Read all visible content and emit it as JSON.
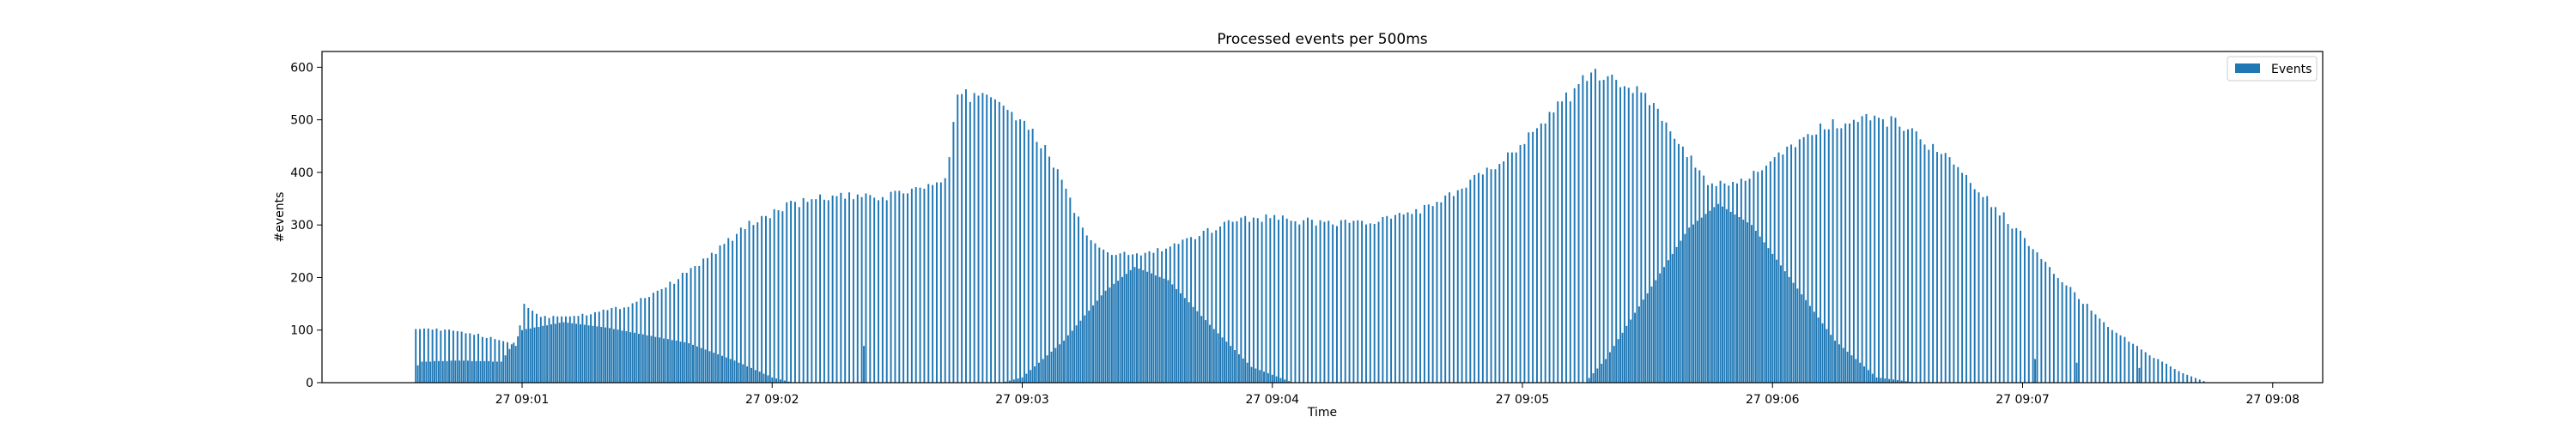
{
  "chart_data": {
    "type": "bar",
    "title": "Processed events per 500ms",
    "xlabel": "Time",
    "ylabel": "#events",
    "xlim": [
      "09:00:12",
      "09:08:12"
    ],
    "ylim": [
      0,
      630
    ],
    "bar_interval": "500ms",
    "grid": false,
    "legend": "top-right",
    "x_ticks": [
      "27 09:01",
      "27 09:02",
      "27 09:03",
      "27 09:04",
      "27 09:05",
      "27 09:06",
      "27 09:07",
      "27 09:08"
    ],
    "y_ticks": [
      0,
      100,
      200,
      300,
      400,
      500,
      600
    ],
    "color": "#1f77b4",
    "series": [
      {
        "name": "Events",
        "start": "09:00:34.5",
        "end": "09:07:44.5",
        "upper_envelope": [
          [
            "09:00:34.5",
            105
          ],
          [
            "09:00:47",
            95
          ],
          [
            "09:00:55",
            80
          ],
          [
            "09:00:59",
            70
          ],
          [
            "09:01:00",
            150
          ],
          [
            "09:01:05",
            125
          ],
          [
            "09:01:15",
            130
          ],
          [
            "09:01:25",
            145
          ],
          [
            "09:01:35",
            185
          ],
          [
            "09:01:45",
            240
          ],
          [
            "09:01:55",
            305
          ],
          [
            "09:02:05",
            340
          ],
          [
            "09:02:15",
            355
          ],
          [
            "09:02:25",
            350
          ],
          [
            "09:02:35",
            370
          ],
          [
            "09:02:42",
            380
          ],
          [
            "09:02:44",
            545
          ],
          [
            "09:02:51",
            550
          ],
          [
            "09:02:55",
            535
          ],
          [
            "09:03:05",
            450
          ],
          [
            "09:03:10",
            380
          ],
          [
            "09:03:15",
            280
          ],
          [
            "09:03:20",
            245
          ],
          [
            "09:03:30",
            245
          ],
          [
            "09:03:40",
            270
          ],
          [
            "09:03:50",
            310
          ],
          [
            "09:04:00",
            315
          ],
          [
            "09:04:10",
            305
          ],
          [
            "09:04:25",
            305
          ],
          [
            "09:04:40",
            340
          ],
          [
            "09:04:55",
            420
          ],
          [
            "09:05:05",
            500
          ],
          [
            "09:05:15",
            575
          ],
          [
            "09:05:20",
            590
          ],
          [
            "09:05:30",
            540
          ],
          [
            "09:05:40",
            430
          ],
          [
            "09:05:45",
            380
          ],
          [
            "09:05:50",
            370
          ],
          [
            "09:06:00",
            420
          ],
          [
            "09:06:10",
            480
          ],
          [
            "09:06:20",
            500
          ],
          [
            "09:06:30",
            495
          ],
          [
            "09:06:40",
            440
          ],
          [
            "09:06:50",
            360
          ],
          [
            "09:07:00",
            280
          ],
          [
            "09:07:10",
            190
          ],
          [
            "09:07:20",
            110
          ],
          [
            "09:07:30",
            55
          ],
          [
            "09:07:38",
            20
          ],
          [
            "09:07:44.5",
            0
          ]
        ],
        "lower_envelope": [
          [
            "09:00:34.5",
            30
          ],
          [
            "09:00:36",
            40
          ],
          [
            "09:00:45",
            42
          ],
          [
            "09:00:55",
            40
          ],
          [
            "09:01:00",
            100
          ],
          [
            "09:01:10",
            115
          ],
          [
            "09:01:20",
            105
          ],
          [
            "09:01:30",
            90
          ],
          [
            "09:01:40",
            75
          ],
          [
            "09:01:50",
            45
          ],
          [
            "09:02:00",
            10
          ],
          [
            "09:02:05",
            0
          ],
          [
            "09:02:55",
            0
          ],
          [
            "09:03:00",
            10
          ],
          [
            "09:03:10",
            80
          ],
          [
            "09:03:20",
            175
          ],
          [
            "09:03:27",
            220
          ],
          [
            "09:03:35",
            195
          ],
          [
            "09:03:45",
            110
          ],
          [
            "09:03:55",
            30
          ],
          [
            "09:04:05",
            0
          ],
          [
            "09:05:15",
            0
          ],
          [
            "09:05:20",
            45
          ],
          [
            "09:05:30",
            170
          ],
          [
            "09:05:40",
            295
          ],
          [
            "09:05:47",
            340
          ],
          [
            "09:05:55",
            300
          ],
          [
            "09:06:05",
            190
          ],
          [
            "09:06:15",
            80
          ],
          [
            "09:06:25",
            10
          ],
          [
            "09:06:35",
            0
          ],
          [
            "09:07:44.5",
            0
          ]
        ],
        "spikes": [
          [
            "09:02:22",
            70
          ],
          [
            "09:06:20",
            40
          ],
          [
            "09:07:03",
            45
          ],
          [
            "09:07:13",
            38
          ],
          [
            "09:07:28",
            28
          ]
        ]
      }
    ]
  }
}
